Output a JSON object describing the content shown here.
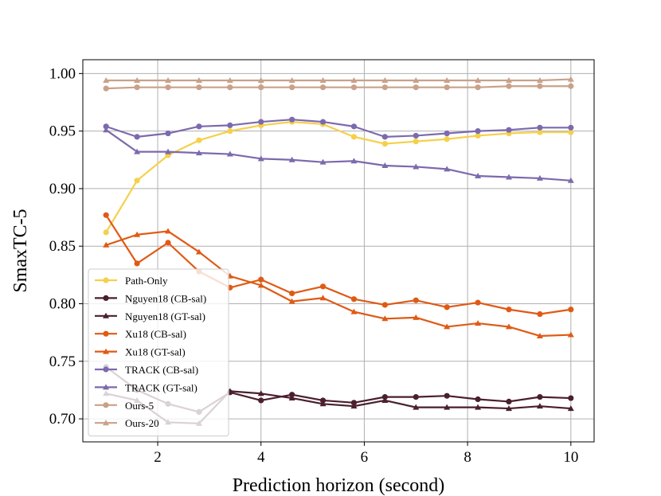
{
  "chart_data": {
    "type": "line",
    "xlabel": "Prediction horizon (second)",
    "ylabel": "SmaxTC-5",
    "xlim": [
      0.55,
      10.45
    ],
    "ylim": [
      0.68,
      1.012
    ],
    "xticks": [
      2,
      4,
      6,
      8,
      10
    ],
    "yticks": [
      0.7,
      0.75,
      0.8,
      0.85,
      0.9,
      0.95,
      1.0
    ],
    "xtick_labels": [
      "2",
      "4",
      "6",
      "8",
      "10"
    ],
    "ytick_labels": [
      "0.70",
      "0.75",
      "0.80",
      "0.85",
      "0.90",
      "0.95",
      "1.00"
    ],
    "grid": true,
    "legend_position": "lower-left",
    "x": [
      1.0,
      1.6,
      2.2,
      2.8,
      3.4,
      4.0,
      4.6,
      5.2,
      5.8,
      6.4,
      7.0,
      7.6,
      8.2,
      8.8,
      9.4,
      10.0
    ],
    "series": [
      {
        "name": "Path-Only",
        "color": "#f5d04b",
        "marker": "circle",
        "values": [
          0.862,
          0.907,
          0.929,
          0.942,
          0.95,
          0.955,
          0.958,
          0.956,
          0.945,
          0.939,
          0.941,
          0.943,
          0.946,
          0.948,
          0.949,
          0.949
        ]
      },
      {
        "name": "Nguyen18 (CB-sal)",
        "color": "#4a1f2e",
        "marker": "circle",
        "values": [
          0.745,
          0.725,
          0.713,
          0.706,
          0.723,
          0.716,
          0.721,
          0.716,
          0.714,
          0.719,
          0.719,
          0.72,
          0.717,
          0.715,
          0.719,
          0.718
        ]
      },
      {
        "name": "Nguyen18 (GT-sal)",
        "color": "#4a1f2e",
        "marker": "triangle",
        "values": [
          0.722,
          0.716,
          0.697,
          0.696,
          0.724,
          0.722,
          0.718,
          0.713,
          0.711,
          0.716,
          0.71,
          0.71,
          0.71,
          0.709,
          0.711,
          0.709
        ]
      },
      {
        "name": "Xu18 (CB-sal)",
        "color": "#e05a14",
        "marker": "circle",
        "values": [
          0.877,
          0.835,
          0.853,
          0.828,
          0.814,
          0.821,
          0.809,
          0.815,
          0.804,
          0.799,
          0.803,
          0.797,
          0.801,
          0.795,
          0.791,
          0.795
        ]
      },
      {
        "name": "Xu18 (GT-sal)",
        "color": "#e05a14",
        "marker": "triangle",
        "values": [
          0.851,
          0.86,
          0.863,
          0.845,
          0.824,
          0.816,
          0.802,
          0.805,
          0.793,
          0.787,
          0.788,
          0.78,
          0.783,
          0.78,
          0.772,
          0.773
        ]
      },
      {
        "name": "TRACK (CB-sal)",
        "color": "#7b6aad",
        "marker": "circle",
        "values": [
          0.954,
          0.945,
          0.948,
          0.954,
          0.955,
          0.958,
          0.96,
          0.958,
          0.954,
          0.945,
          0.946,
          0.948,
          0.95,
          0.951,
          0.953,
          0.953
        ]
      },
      {
        "name": "TRACK (GT-sal)",
        "color": "#7b6aad",
        "marker": "triangle",
        "values": [
          0.951,
          0.932,
          0.932,
          0.931,
          0.93,
          0.926,
          0.925,
          0.923,
          0.924,
          0.92,
          0.919,
          0.917,
          0.911,
          0.91,
          0.909,
          0.907
        ]
      },
      {
        "name": "Ours-5",
        "color": "#c9a189",
        "marker": "circle",
        "values": [
          0.987,
          0.988,
          0.988,
          0.988,
          0.988,
          0.988,
          0.988,
          0.988,
          0.988,
          0.988,
          0.988,
          0.988,
          0.988,
          0.989,
          0.989,
          0.989
        ]
      },
      {
        "name": "Ours-20",
        "color": "#c9a189",
        "marker": "triangle",
        "values": [
          0.994,
          0.994,
          0.994,
          0.994,
          0.994,
          0.994,
          0.994,
          0.994,
          0.994,
          0.994,
          0.994,
          0.994,
          0.994,
          0.994,
          0.994,
          0.995
        ]
      }
    ]
  }
}
